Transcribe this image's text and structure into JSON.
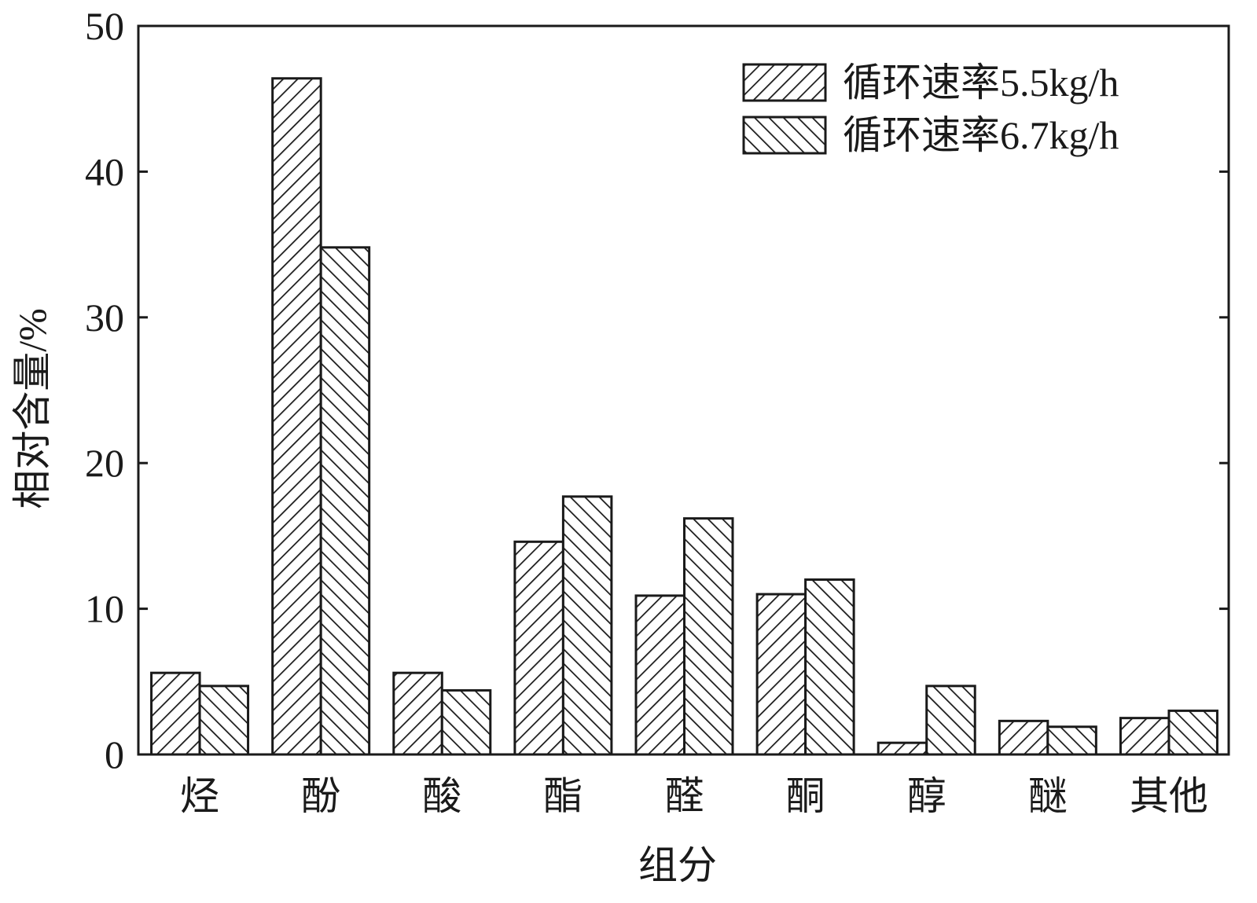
{
  "chart_data": {
    "type": "bar",
    "xlabel": "组分",
    "ylabel": "相对含量/%",
    "ylim": [
      0,
      50
    ],
    "yticks": [
      0,
      10,
      20,
      30,
      40,
      50
    ],
    "grid": false,
    "legend_position": "top-right",
    "categories": [
      "烃",
      "酚",
      "酸",
      "酯",
      "醛",
      "酮",
      "醇",
      "醚",
      "其他"
    ],
    "series": [
      {
        "name": "循环速率5.5kg/h",
        "hatch": "forward-diagonal",
        "values": [
          5.6,
          46.4,
          5.6,
          14.6,
          10.9,
          11.0,
          0.8,
          2.3,
          2.5
        ]
      },
      {
        "name": "循环速率6.7kg/h",
        "hatch": "backward-diagonal",
        "values": [
          4.7,
          34.8,
          4.4,
          17.7,
          16.2,
          12.0,
          4.7,
          1.9,
          3.0
        ]
      }
    ],
    "colors": {
      "stroke": "#1a1a1a",
      "fill": "#ffffff"
    }
  }
}
